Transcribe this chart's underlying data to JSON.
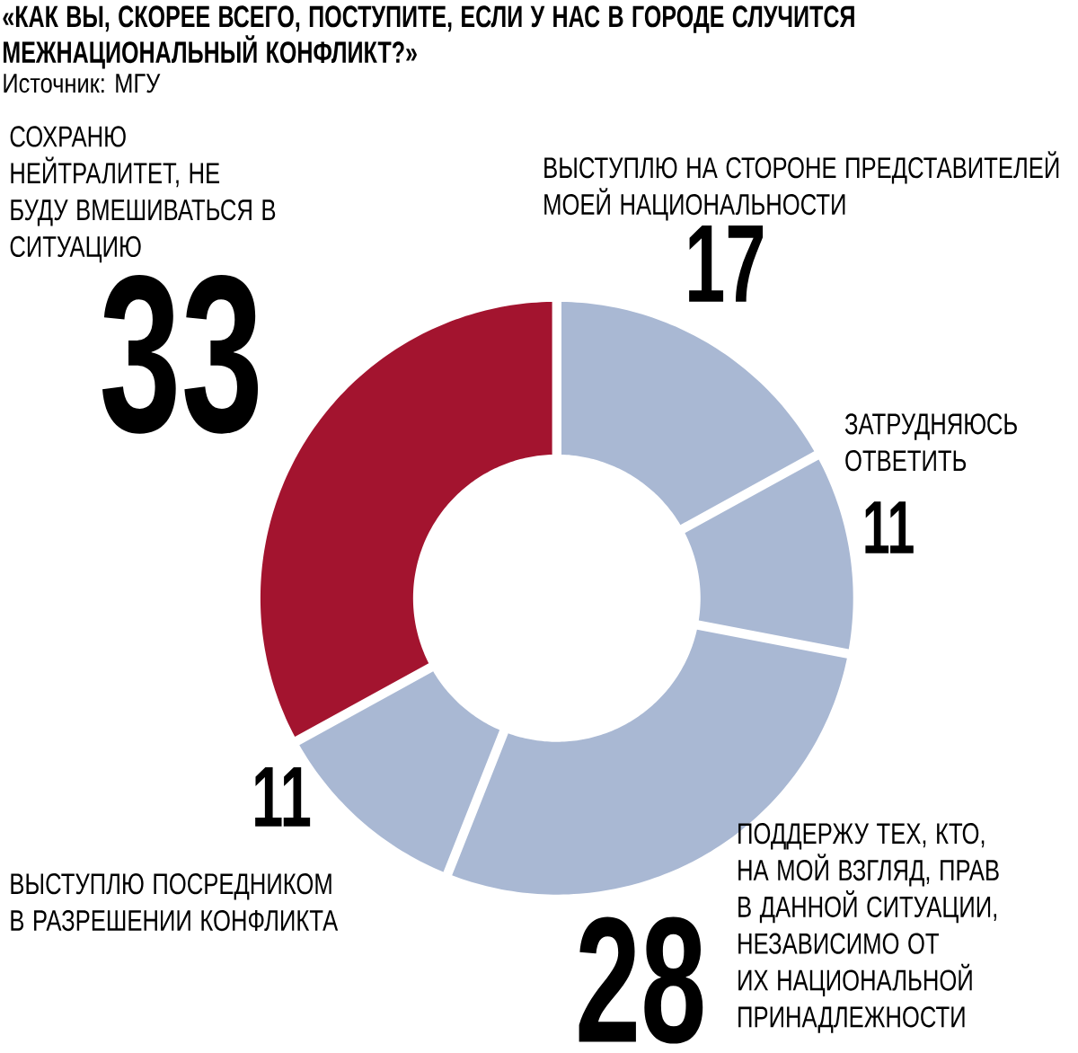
{
  "chart_data": {
    "type": "donut",
    "title": "«КАК ВЫ, СКОРЕЕ ВСЕГО, ПОСТУПИТЕ, ЕСЛИ У НАС В ГОРОДЕ СЛУЧИТСЯ МЕЖНАЦИОНАЛЬНЫЙ КОНФЛИКТ?»",
    "subtitle": "Источник: МГУ",
    "categories": [
      "ВЫСТУПЛЮ НА СТОРОНЕ ПРЕДСТАВИТЕЛЕЙ МОЕЙ НАЦИОНАЛЬНОСТИ",
      "ЗАТРУДНЯЮСЬ ОТВЕТИТЬ",
      "ПОДДЕРЖУ ТЕХ, КТО, НА МОЙ ВЗГЛЯД, ПРАВ В ДАННОЙ СИТУАЦИИ, НЕЗАВИСИМО ОТ ИХ НАЦИОНАЛЬНОЙ ПРИНАДЛЕЖНОСТИ",
      "ВЫСТУПЛЮ ПОСРЕДНИКОМ В РАЗРЕШЕНИИ КОНФЛИКТА",
      "СОХРАНЮ НЕЙТРАЛИТЕТ, НЕ БУДУ ВМЕШИВАТЬСЯ В СИТУАЦИЮ"
    ],
    "values": [
      17,
      11,
      28,
      11,
      33
    ],
    "colors": [
      "#a9b8d3",
      "#a9b8d3",
      "#a9b8d3",
      "#a9b8d3",
      "#a3142f"
    ],
    "data_labels": true
  }
}
